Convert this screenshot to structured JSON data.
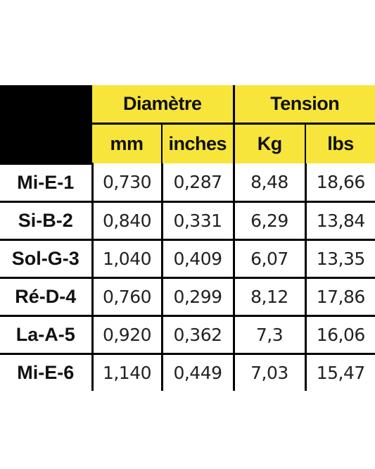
{
  "colors": {
    "header_fill": "#f7e53b",
    "corner_fill": "#000000",
    "rule": "#000000"
  },
  "table": {
    "groups": {
      "diameter": "Diamètre",
      "tension": "Tension"
    },
    "units": {
      "mm": "mm",
      "inches": "inches",
      "kg": "Kg",
      "lbs": "lbs"
    },
    "rows": [
      {
        "name": "Mi-E-1",
        "mm": "0,730",
        "inches": "0,287",
        "kg": "8,48",
        "lbs": "18,66"
      },
      {
        "name": "Si-B-2",
        "mm": "0,840",
        "inches": "0,331",
        "kg": "6,29",
        "lbs": "13,84"
      },
      {
        "name": "Sol-G-3",
        "mm": "1,040",
        "inches": "0,409",
        "kg": "6,07",
        "lbs": "13,35"
      },
      {
        "name": "Ré-D-4",
        "mm": "0,760",
        "inches": "0,299",
        "kg": "8,12",
        "lbs": "17,86"
      },
      {
        "name": "La-A-5",
        "mm": "0,920",
        "inches": "0,362",
        "kg": "7,3",
        "lbs": "16,06"
      },
      {
        "name": "Mi-E-6",
        "mm": "1,140",
        "inches": "0,449",
        "kg": "7,03",
        "lbs": "15,47"
      }
    ]
  }
}
